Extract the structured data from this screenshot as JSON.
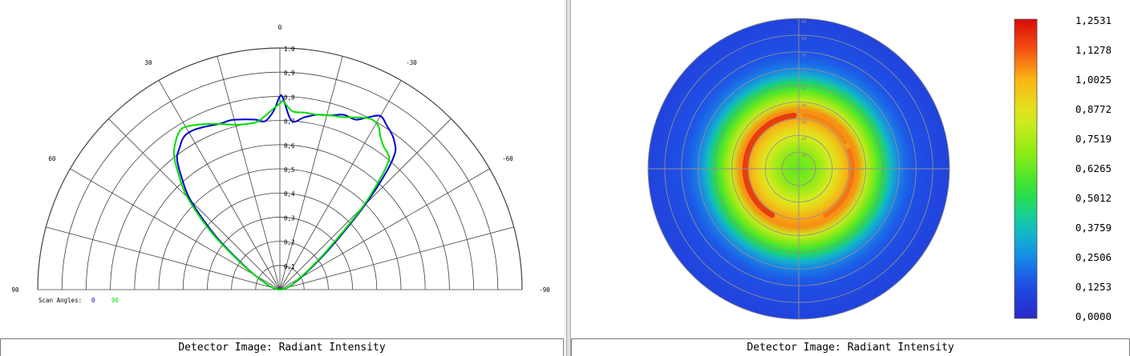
{
  "chart_data": [
    {
      "type": "polar-line",
      "angle_tick_labels": [
        "0",
        "30",
        "-30",
        "60",
        "-60",
        "90",
        "-90"
      ],
      "radial_tick_labels": [
        "0,1",
        "0,2",
        "0,3",
        "0,4",
        "0,5",
        "0,6",
        "0,7",
        "0,8",
        "0,9",
        "1.0"
      ],
      "rlim": [
        0,
        1
      ],
      "legend": {
        "label": "Scan Angles:",
        "entries": [
          "0",
          "90"
        ],
        "placement": "bottom-left"
      },
      "series": [
        {
          "name": "0",
          "color": "#0000cc",
          "angles_deg": [
            -90,
            -80,
            -70,
            -60,
            -55,
            -50,
            -45,
            -42,
            -40,
            -38,
            -36,
            -33,
            -30,
            -27,
            -24,
            -20,
            -16,
            -12,
            -8,
            -4,
            -1,
            0,
            2,
            5,
            8,
            12,
            16,
            20,
            24,
            28,
            31,
            33,
            35,
            38,
            41,
            45,
            50,
            55,
            60,
            70,
            80,
            90
          ],
          "values": [
            0.0,
            0.02,
            0.05,
            0.1,
            0.16,
            0.28,
            0.5,
            0.66,
            0.74,
            0.77,
            0.79,
            0.81,
            0.83,
            0.8,
            0.77,
            0.77,
            0.75,
            0.74,
            0.72,
            0.7,
            0.79,
            0.8,
            0.74,
            0.7,
            0.71,
            0.72,
            0.73,
            0.73,
            0.74,
            0.75,
            0.75,
            0.74,
            0.72,
            0.69,
            0.62,
            0.52,
            0.35,
            0.2,
            0.12,
            0.05,
            0.02,
            0.0
          ]
        },
        {
          "name": "90",
          "color": "#00dd00",
          "angles_deg": [
            -90,
            -80,
            -70,
            -60,
            -55,
            -50,
            -45,
            -42,
            -40,
            -38,
            -36,
            -33,
            -31,
            -28,
            -24,
            -20,
            -16,
            -12,
            -8,
            -4,
            -1,
            0,
            2,
            5,
            8,
            12,
            16,
            20,
            24,
            28,
            31,
            33,
            35,
            38,
            41,
            45,
            50,
            55,
            60,
            70,
            80,
            90
          ],
          "values": [
            0.0,
            0.02,
            0.05,
            0.09,
            0.15,
            0.26,
            0.48,
            0.62,
            0.7,
            0.72,
            0.73,
            0.76,
            0.79,
            0.8,
            0.78,
            0.76,
            0.75,
            0.74,
            0.74,
            0.74,
            0.78,
            0.77,
            0.75,
            0.72,
            0.7,
            0.7,
            0.71,
            0.73,
            0.75,
            0.77,
            0.78,
            0.77,
            0.75,
            0.71,
            0.64,
            0.54,
            0.37,
            0.21,
            0.12,
            0.05,
            0.02,
            0.0
          ]
        }
      ]
    },
    {
      "type": "heatmap",
      "radial_tick_labels": [
        "10",
        "20",
        "30",
        "40",
        "50",
        "60",
        "70",
        "80",
        "90"
      ],
      "colorbar": {
        "labels": [
          "1,2531",
          "1,1278",
          "1,0025",
          "0,8772",
          "0,7519",
          "0,6265",
          "0,5012",
          "0,3759",
          "0,2506",
          "0,1253",
          "0,0000"
        ],
        "min": 0.0,
        "max": 1.2531
      },
      "radial_profile": {
        "r_deg": [
          0,
          10,
          20,
          25,
          30,
          35,
          40,
          45,
          50,
          55,
          60,
          65,
          70,
          80,
          90
        ],
        "values": [
          0.62,
          0.68,
          0.85,
          0.93,
          1.02,
          1.05,
          0.82,
          0.66,
          0.52,
          0.36,
          0.24,
          0.18,
          0.15,
          0.12,
          0.1
        ]
      }
    }
  ],
  "status": {
    "left": "Detector Image: Radiant Intensity",
    "right": "Detector Image: Radiant Intensity"
  },
  "colors": {
    "grid": "#404040",
    "ring_grid": "#909090",
    "series0": "#0000cc",
    "series1": "#00dd00"
  }
}
